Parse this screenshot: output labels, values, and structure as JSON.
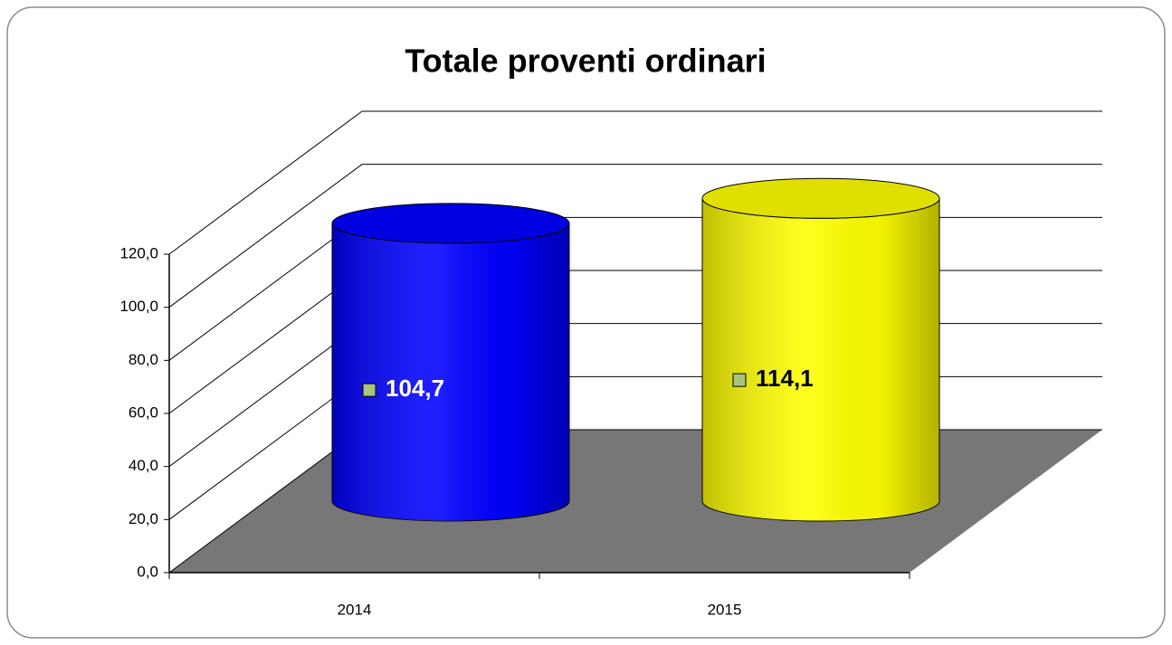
{
  "chart_data": {
    "type": "cylinder",
    "title": "Totale proventi ordinari",
    "categories": [
      "2014",
      "2015"
    ],
    "values": [
      104.7,
      114.1
    ],
    "value_labels": [
      "104,7",
      "114,1"
    ],
    "colors": [
      "#0000ff",
      "#ffff00"
    ],
    "label_marker_color": "#a9c47f",
    "ylim": [
      0,
      120
    ],
    "yticks": [
      {
        "value": 0,
        "label": "0,0"
      },
      {
        "value": 20,
        "label": "20,0"
      },
      {
        "value": 40,
        "label": "40,0"
      },
      {
        "value": 60,
        "label": "60,0"
      },
      {
        "value": 80,
        "label": "80,0"
      },
      {
        "value": 100,
        "label": "100,0"
      },
      {
        "value": 120,
        "label": "120,0"
      }
    ],
    "grid": true
  }
}
